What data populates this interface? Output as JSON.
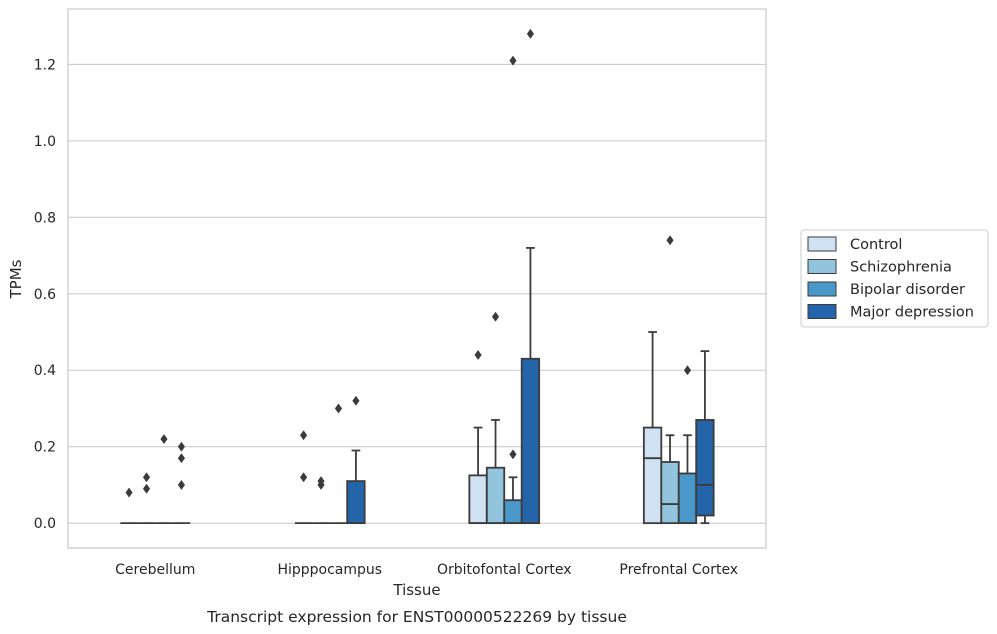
{
  "chart_data": {
    "type": "box",
    "caption": "Transcript expression for ENST00000522269 by tissue",
    "xlabel": "Tissue",
    "ylabel": "TPMs",
    "ylim": [
      -0.065,
      1.345
    ],
    "yticks": [
      0.0,
      0.2,
      0.4,
      0.6,
      0.8,
      1.0,
      1.2
    ],
    "ytick_labels": [
      "0.0",
      "0.2",
      "0.4",
      "0.6",
      "0.8",
      "1.0",
      "1.2"
    ],
    "grid": "horizontal",
    "legend_position": "right",
    "categories": [
      "Cerebellum",
      "Hipppocampus",
      "Orbitofontal Cortex",
      "Prefrontal Cortex"
    ],
    "series": [
      {
        "name": "Control",
        "color": "#cfe1f2",
        "boxes": [
          {
            "q1": 0,
            "median": 0,
            "q3": 0,
            "whislo": 0,
            "whishi": 0,
            "fliers": [
              0.08
            ]
          },
          {
            "q1": 0,
            "median": 0,
            "q3": 0,
            "whislo": 0,
            "whishi": 0,
            "fliers": [
              0.12,
              0.23
            ]
          },
          {
            "q1": 0,
            "median": 0,
            "q3": 0.125,
            "whislo": 0,
            "whishi": 0.25,
            "fliers": [
              0.44
            ]
          },
          {
            "q1": 0,
            "median": 0.17,
            "q3": 0.25,
            "whislo": 0,
            "whishi": 0.5,
            "fliers": []
          }
        ]
      },
      {
        "name": "Schizophrenia",
        "color": "#93c4de",
        "boxes": [
          {
            "q1": 0,
            "median": 0,
            "q3": 0,
            "whislo": 0,
            "whishi": 0,
            "fliers": [
              0.09,
              0.12
            ]
          },
          {
            "q1": 0,
            "median": 0,
            "q3": 0,
            "whislo": 0,
            "whishi": 0,
            "fliers": [
              0.1,
              0.11
            ]
          },
          {
            "q1": 0,
            "median": 0,
            "q3": 0.145,
            "whislo": 0,
            "whishi": 0.27,
            "fliers": [
              0.54
            ]
          },
          {
            "q1": 0,
            "median": 0.05,
            "q3": 0.16,
            "whislo": 0,
            "whishi": 0.23,
            "fliers": [
              0.74
            ]
          }
        ]
      },
      {
        "name": "Bipolar disorder",
        "color": "#4a98c9",
        "boxes": [
          {
            "q1": 0,
            "median": 0,
            "q3": 0,
            "whislo": 0,
            "whishi": 0,
            "fliers": [
              0.22
            ]
          },
          {
            "q1": 0,
            "median": 0,
            "q3": 0,
            "whislo": 0,
            "whishi": 0,
            "fliers": [
              0.3
            ]
          },
          {
            "q1": 0,
            "median": 0,
            "q3": 0.06,
            "whislo": 0,
            "whishi": 0.12,
            "fliers": [
              0.18,
              1.21
            ]
          },
          {
            "q1": 0,
            "median": 0,
            "q3": 0.13,
            "whislo": 0,
            "whishi": 0.23,
            "fliers": [
              0.4
            ]
          }
        ]
      },
      {
        "name": "Major depression",
        "color": "#2464aa",
        "boxes": [
          {
            "q1": 0,
            "median": 0,
            "q3": 0,
            "whislo": 0,
            "whishi": 0,
            "fliers": [
              0.1,
              0.17,
              0.2
            ]
          },
          {
            "q1": 0,
            "median": 0,
            "q3": 0.11,
            "whislo": 0,
            "whishi": 0.19,
            "fliers": [
              0.32
            ]
          },
          {
            "q1": 0,
            "median": 0,
            "q3": 0.43,
            "whislo": 0,
            "whishi": 0.72,
            "fliers": [
              1.28
            ]
          },
          {
            "q1": 0.02,
            "median": 0.1,
            "q3": 0.27,
            "whislo": 0,
            "whishi": 0.45,
            "fliers": []
          }
        ]
      }
    ]
  }
}
